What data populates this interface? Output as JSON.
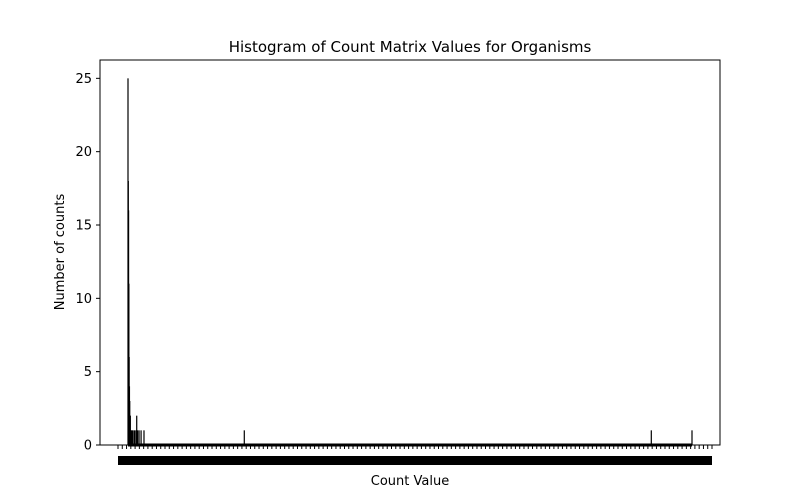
{
  "chart_data": {
    "type": "bar",
    "title": "Histogram of Count Matrix Values for Organisms",
    "xlabel": "Count Value",
    "ylabel": "Number of counts",
    "ylim": [
      0,
      26.25
    ],
    "yticks": [
      0,
      5,
      10,
      15,
      20,
      25
    ],
    "bar_color": "#000000",
    "bins": [
      {
        "x": 0,
        "count": 25
      },
      {
        "x": 1,
        "count": 18
      },
      {
        "x": 2,
        "count": 16
      },
      {
        "x": 3,
        "count": 11
      },
      {
        "x": 4,
        "count": 6
      },
      {
        "x": 5,
        "count": 4
      },
      {
        "x": 6,
        "count": 3
      },
      {
        "x": 7,
        "count": 2
      },
      {
        "x": 8,
        "count": 2
      },
      {
        "x": 9,
        "count": 1
      },
      {
        "x": 11,
        "count": 1
      },
      {
        "x": 14,
        "count": 1
      },
      {
        "x": 17,
        "count": 1
      },
      {
        "x": 22,
        "count": 1
      },
      {
        "x": 27,
        "count": 1
      },
      {
        "x": 30,
        "count": 2
      },
      {
        "x": 33,
        "count": 1
      },
      {
        "x": 38,
        "count": 1
      },
      {
        "x": 45,
        "count": 1
      },
      {
        "x": 55,
        "count": 1
      },
      {
        "x": 400,
        "count": 1
      },
      {
        "x": 1800,
        "count": 1
      },
      {
        "x": 1940,
        "count": 1
      }
    ],
    "x_max": 1940
  }
}
